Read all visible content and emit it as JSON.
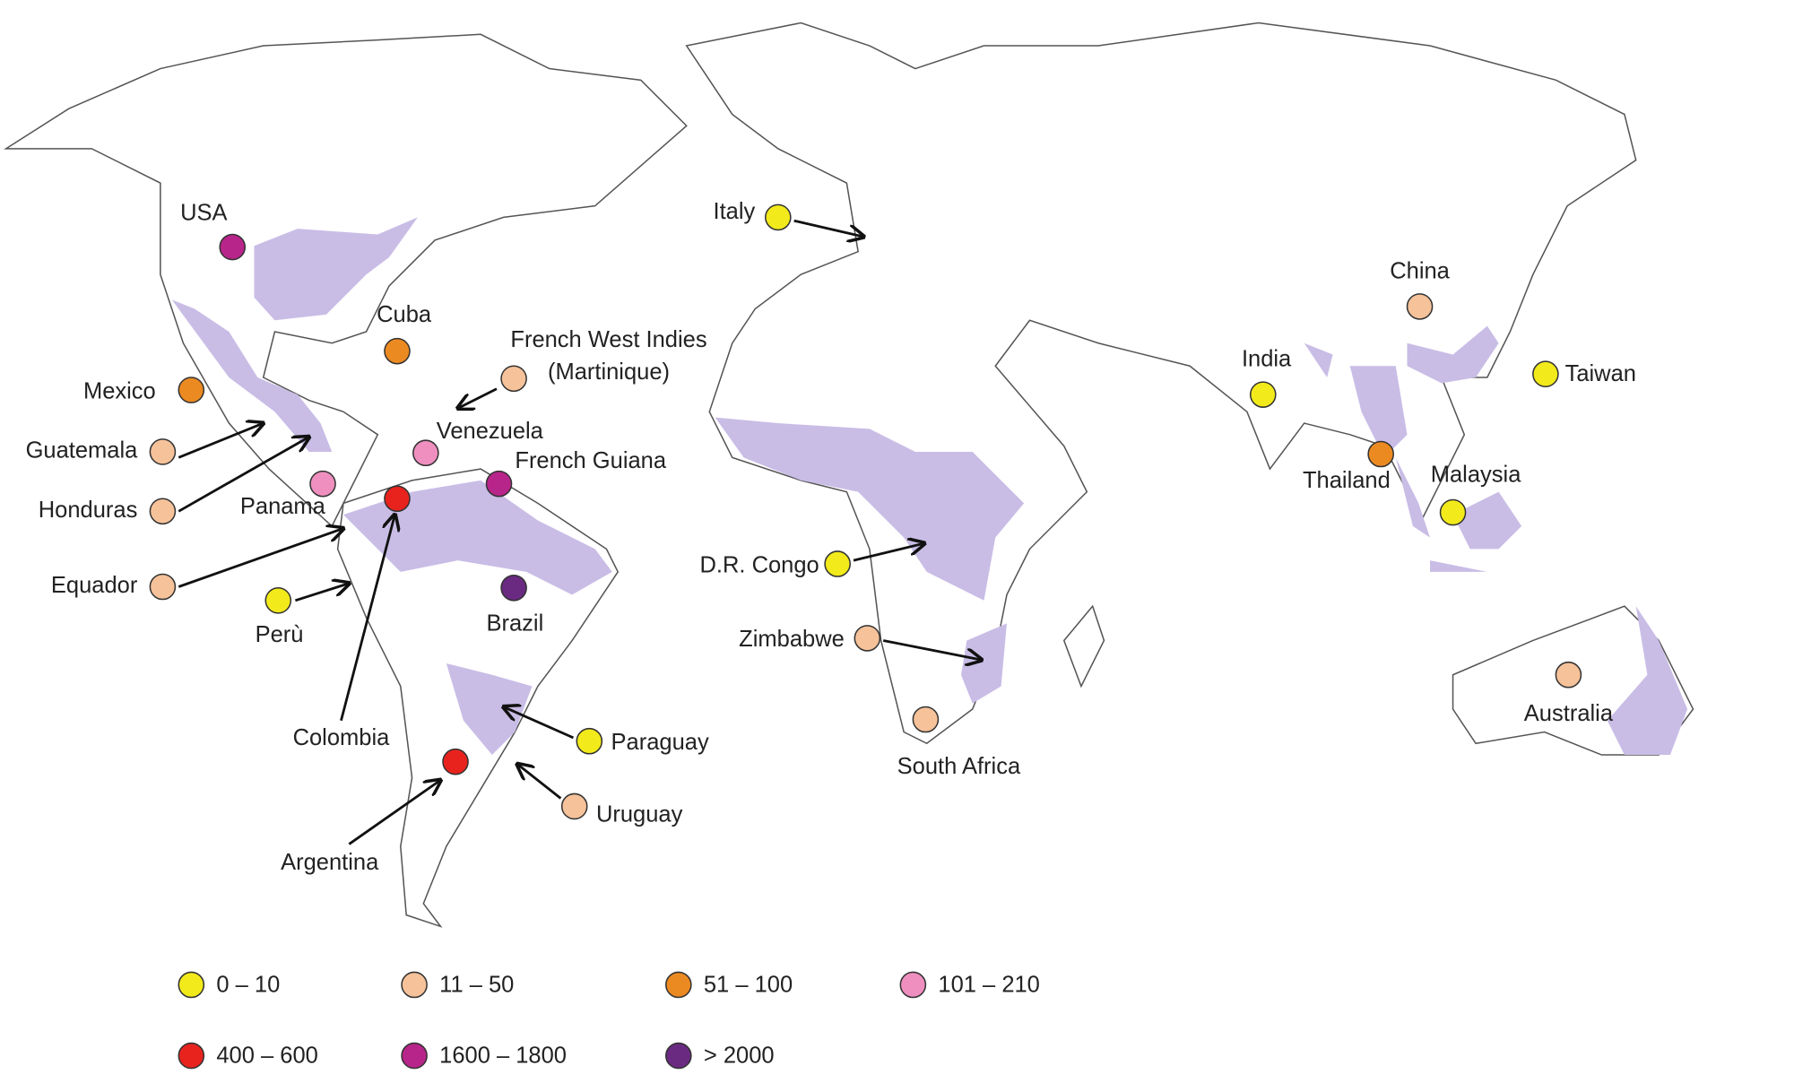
{
  "map": {
    "legend": {
      "items": [
        {
          "label": "0 – 10",
          "color": "#f2ea1a",
          "countries": [
            "Italy",
            "India",
            "Taiwan",
            "Malaysia",
            "D.R. Congo",
            "Perù",
            "Paraguay"
          ]
        },
        {
          "label": "11 – 50",
          "color": "#f6c29a",
          "countries": [
            "China",
            [
              "French West Indies",
              "(Martinique)"
            ],
            "Guatemala",
            "Honduras",
            "Equador",
            "Zimbabwe",
            "South Africa",
            "Australia",
            "Uruguay"
          ]
        },
        {
          "label": "51 – 100",
          "color": "#ec8a22",
          "countries": [
            "Cuba",
            "Mexico",
            "Thailand"
          ]
        },
        {
          "label": "101 – 210",
          "color": "#ef8fbf",
          "countries": [
            "Venezuela",
            "Panama"
          ]
        },
        {
          "label": "400 – 600",
          "color": "#e8231e",
          "countries": [
            "Colombia",
            "Argentina"
          ]
        },
        {
          "label": "1600 – 1800",
          "color": "#b8258a",
          "countries": [
            "USA",
            "French Guiana"
          ]
        },
        {
          "label": "> 2000",
          "color": "#6a2a82",
          "countries": [
            "Brazil"
          ]
        }
      ]
    }
  }
}
